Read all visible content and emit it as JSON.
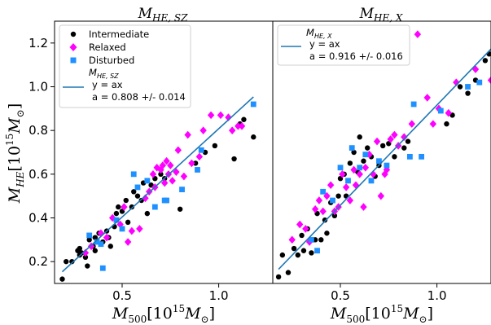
{
  "panels": [
    {
      "title_main": "M",
      "title_sub": "HE, SZ",
      "xlabel_main": "M",
      "xlabel_sub": "500",
      "xlabel_rest": "[10",
      "xlabel_exp": "15",
      "xlabel_end": "M",
      "xlabel_unit_sub": "⊙",
      "xlabel_close": "]",
      "ylabel_main": "M",
      "ylabel_sub": "HE",
      "ylabel_rest": "[10",
      "ylabel_exp": "15",
      "ylabel_end": "M",
      "ylabel_unit_sub": "⊙",
      "ylabel_close": "]",
      "legend": {
        "intermediate": "Intermediate",
        "relaxed": "Relaxed",
        "disturbed": "Disturbed",
        "fit_title_main": "M",
        "fit_title_sub": "HE, SZ",
        "fit_eq": "y = ax",
        "fit_param": "a = 0.808 +/- 0.014"
      }
    },
    {
      "title_main": "M",
      "title_sub": "HE, X",
      "xlabel_main": "M",
      "xlabel_sub": "500",
      "xlabel_rest": "[10",
      "xlabel_exp": "15",
      "xlabel_end": "M",
      "xlabel_unit_sub": "⊙",
      "xlabel_close": "]",
      "legend": {
        "fit_title_main": "M",
        "fit_title_sub": "HE, X",
        "fit_eq": "y = ax",
        "fit_param": "a = 0.916 +/- 0.016"
      }
    }
  ],
  "colors": {
    "intermediate": "#000000",
    "relaxed": "#ff00ff",
    "disturbed": "#1e90ff",
    "fit": "#1f77b4"
  },
  "chart_data": [
    {
      "type": "scatter",
      "title": "M_HE,SZ",
      "xlabel": "M_500 [10^15 M_sun]",
      "ylabel": "M_HE [10^15 M_sun]",
      "xlim": [
        0.15,
        1.28
      ],
      "ylim": [
        0.1,
        1.3
      ],
      "xticks": [
        0.5,
        1.0
      ],
      "xtick_labels": [
        "0.5",
        "1.0"
      ],
      "yticks": [
        0.2,
        0.4,
        0.6,
        0.8,
        1.0,
        1.2
      ],
      "ytick_labels": [
        "0.2",
        "0.4",
        "0.6",
        "0.8",
        "1.0",
        "1.2"
      ],
      "legend_position": "upper-left",
      "fit": {
        "name": "M_HE,SZ: y = ax",
        "slope": 0.808
      },
      "series": [
        {
          "name": "Intermediate",
          "marker": "circle",
          "points": [
            [
              0.19,
              0.12
            ],
            [
              0.21,
              0.2
            ],
            [
              0.24,
              0.2
            ],
            [
              0.27,
              0.25
            ],
            [
              0.28,
              0.26
            ],
            [
              0.28,
              0.23
            ],
            [
              0.29,
              0.24
            ],
            [
              0.31,
              0.22
            ],
            [
              0.32,
              0.18
            ],
            [
              0.33,
              0.3
            ],
            [
              0.35,
              0.27
            ],
            [
              0.36,
              0.31
            ],
            [
              0.36,
              0.25
            ],
            [
              0.38,
              0.33
            ],
            [
              0.4,
              0.29
            ],
            [
              0.42,
              0.34
            ],
            [
              0.43,
              0.31
            ],
            [
              0.44,
              0.27
            ],
            [
              0.46,
              0.36
            ],
            [
              0.47,
              0.42
            ],
            [
              0.48,
              0.45
            ],
            [
              0.5,
              0.43
            ],
            [
              0.52,
              0.48
            ],
            [
              0.53,
              0.38
            ],
            [
              0.55,
              0.45
            ],
            [
              0.56,
              0.52
            ],
            [
              0.58,
              0.5
            ],
            [
              0.6,
              0.48
            ],
            [
              0.61,
              0.56
            ],
            [
              0.63,
              0.42
            ],
            [
              0.65,
              0.55
            ],
            [
              0.67,
              0.58
            ],
            [
              0.7,
              0.6
            ],
            [
              0.72,
              0.58
            ],
            [
              0.8,
              0.44
            ],
            [
              0.88,
              0.65
            ],
            [
              0.93,
              0.7
            ],
            [
              0.98,
              0.73
            ],
            [
              1.08,
              0.67
            ],
            [
              1.11,
              0.83
            ],
            [
              1.13,
              0.85
            ],
            [
              1.18,
              0.77
            ]
          ]
        },
        {
          "name": "Relaxed",
          "marker": "diamond",
          "points": [
            [
              0.31,
              0.24
            ],
            [
              0.34,
              0.27
            ],
            [
              0.39,
              0.33
            ],
            [
              0.42,
              0.31
            ],
            [
              0.45,
              0.4
            ],
            [
              0.49,
              0.37
            ],
            [
              0.51,
              0.45
            ],
            [
              0.53,
              0.29
            ],
            [
              0.55,
              0.34
            ],
            [
              0.59,
              0.35
            ],
            [
              0.62,
              0.49
            ],
            [
              0.64,
              0.52
            ],
            [
              0.66,
              0.6
            ],
            [
              0.67,
              0.54
            ],
            [
              0.68,
              0.63
            ],
            [
              0.7,
              0.62
            ],
            [
              0.71,
              0.64
            ],
            [
              0.72,
              0.56
            ],
            [
              0.73,
              0.66
            ],
            [
              0.74,
              0.6
            ],
            [
              0.75,
              0.64
            ],
            [
              0.76,
              0.57
            ],
            [
              0.78,
              0.61
            ],
            [
              0.79,
              0.71
            ],
            [
              0.82,
              0.59
            ],
            [
              0.84,
              0.78
            ],
            [
              0.86,
              0.65
            ],
            [
              0.9,
              0.68
            ],
            [
              0.92,
              0.8
            ],
            [
              0.96,
              0.87
            ],
            [
              1.01,
              0.87
            ],
            [
              1.05,
              0.86
            ],
            [
              1.07,
              0.8
            ],
            [
              1.1,
              0.82
            ],
            [
              1.12,
              0.82
            ]
          ]
        },
        {
          "name": "Disturbed",
          "marker": "square",
          "points": [
            [
              0.33,
              0.32
            ],
            [
              0.37,
              0.29
            ],
            [
              0.39,
              0.28
            ],
            [
              0.4,
              0.17
            ],
            [
              0.47,
              0.39
            ],
            [
              0.5,
              0.35
            ],
            [
              0.56,
              0.6
            ],
            [
              0.58,
              0.54
            ],
            [
              0.63,
              0.57
            ],
            [
              0.67,
              0.45
            ],
            [
              0.72,
              0.48
            ],
            [
              0.73,
              0.48
            ],
            [
              0.81,
              0.53
            ],
            [
              0.89,
              0.62
            ],
            [
              0.91,
              0.71
            ],
            [
              1.18,
              0.92
            ]
          ]
        }
      ]
    },
    {
      "type": "scatter",
      "title": "M_HE,X",
      "xlabel": "M_500 [10^15 M_sun]",
      "ylabel": "",
      "xlim": [
        0.15,
        1.28
      ],
      "ylim": [
        0.1,
        1.3
      ],
      "xticks": [
        0.5,
        1.0
      ],
      "xtick_labels": [
        "0.5",
        "1.0"
      ],
      "yticks": [],
      "legend_position": "upper-left",
      "fit": {
        "name": "M_HE,X: y = ax",
        "slope": 0.916
      },
      "series": [
        {
          "name": "Intermediate",
          "marker": "circle",
          "points": [
            [
              0.18,
              0.13
            ],
            [
              0.2,
              0.23
            ],
            [
              0.23,
              0.15
            ],
            [
              0.26,
              0.26
            ],
            [
              0.28,
              0.23
            ],
            [
              0.3,
              0.32
            ],
            [
              0.31,
              0.25
            ],
            [
              0.33,
              0.35
            ],
            [
              0.35,
              0.24
            ],
            [
              0.37,
              0.3
            ],
            [
              0.38,
              0.42
            ],
            [
              0.4,
              0.3
            ],
            [
              0.42,
              0.39
            ],
            [
              0.43,
              0.33
            ],
            [
              0.45,
              0.47
            ],
            [
              0.47,
              0.41
            ],
            [
              0.49,
              0.5
            ],
            [
              0.5,
              0.58
            ],
            [
              0.52,
              0.6
            ],
            [
              0.53,
              0.5
            ],
            [
              0.55,
              0.65
            ],
            [
              0.57,
              0.7
            ],
            [
              0.59,
              0.61
            ],
            [
              0.6,
              0.77
            ],
            [
              0.62,
              0.66
            ],
            [
              0.64,
              0.72
            ],
            [
              0.66,
              0.68
            ],
            [
              0.68,
              0.59
            ],
            [
              0.7,
              0.64
            ],
            [
              0.72,
              0.73
            ],
            [
              0.75,
              0.74
            ],
            [
              0.78,
              0.68
            ],
            [
              0.83,
              0.72
            ],
            [
              0.85,
              0.75
            ],
            [
              1.05,
              0.83
            ],
            [
              1.08,
              0.87
            ],
            [
              1.12,
              1.0
            ],
            [
              1.16,
              0.97
            ],
            [
              1.2,
              1.03
            ],
            [
              1.25,
              1.12
            ],
            [
              1.27,
              1.15
            ]
          ]
        },
        {
          "name": "Relaxed",
          "marker": "diamond",
          "points": [
            [
              0.25,
              0.3
            ],
            [
              0.29,
              0.37
            ],
            [
              0.32,
              0.35
            ],
            [
              0.34,
              0.29
            ],
            [
              0.37,
              0.44
            ],
            [
              0.39,
              0.48
            ],
            [
              0.41,
              0.43
            ],
            [
              0.43,
              0.5
            ],
            [
              0.45,
              0.55
            ],
            [
              0.47,
              0.43
            ],
            [
              0.49,
              0.45
            ],
            [
              0.51,
              0.6
            ],
            [
              0.53,
              0.54
            ],
            [
              0.55,
              0.48
            ],
            [
              0.57,
              0.62
            ],
            [
              0.58,
              0.55
            ],
            [
              0.6,
              0.6
            ],
            [
              0.62,
              0.45
            ],
            [
              0.63,
              0.63
            ],
            [
              0.65,
              0.69
            ],
            [
              0.67,
              0.6
            ],
            [
              0.69,
              0.75
            ],
            [
              0.71,
              0.5
            ],
            [
              0.73,
              0.6
            ],
            [
              0.74,
              0.62
            ],
            [
              0.76,
              0.76
            ],
            [
              0.78,
              0.78
            ],
            [
              0.8,
              0.73
            ],
            [
              0.83,
              0.77
            ],
            [
              0.87,
              0.83
            ],
            [
              0.9,
              1.24
            ],
            [
              0.95,
              0.95
            ],
            [
              0.98,
              0.83
            ],
            [
              1.01,
              0.9
            ],
            [
              1.06,
              0.88
            ],
            [
              1.1,
              1.02
            ],
            [
              1.2,
              1.08
            ],
            [
              1.28,
              1.03
            ]
          ]
        },
        {
          "name": "Disturbed",
          "marker": "square",
          "points": [
            [
              0.35,
              0.3
            ],
            [
              0.38,
              0.25
            ],
            [
              0.41,
              0.52
            ],
            [
              0.46,
              0.48
            ],
            [
              0.5,
              0.63
            ],
            [
              0.54,
              0.57
            ],
            [
              0.56,
              0.72
            ],
            [
              0.6,
              0.63
            ],
            [
              0.63,
              0.69
            ],
            [
              0.66,
              0.57
            ],
            [
              0.7,
              0.66
            ],
            [
              0.74,
              0.64
            ],
            [
              0.86,
              0.68
            ],
            [
              0.88,
              0.92
            ],
            [
              0.92,
              0.68
            ],
            [
              1.02,
              0.89
            ],
            [
              1.16,
              1.0
            ],
            [
              1.22,
              1.02
            ]
          ]
        }
      ]
    }
  ]
}
